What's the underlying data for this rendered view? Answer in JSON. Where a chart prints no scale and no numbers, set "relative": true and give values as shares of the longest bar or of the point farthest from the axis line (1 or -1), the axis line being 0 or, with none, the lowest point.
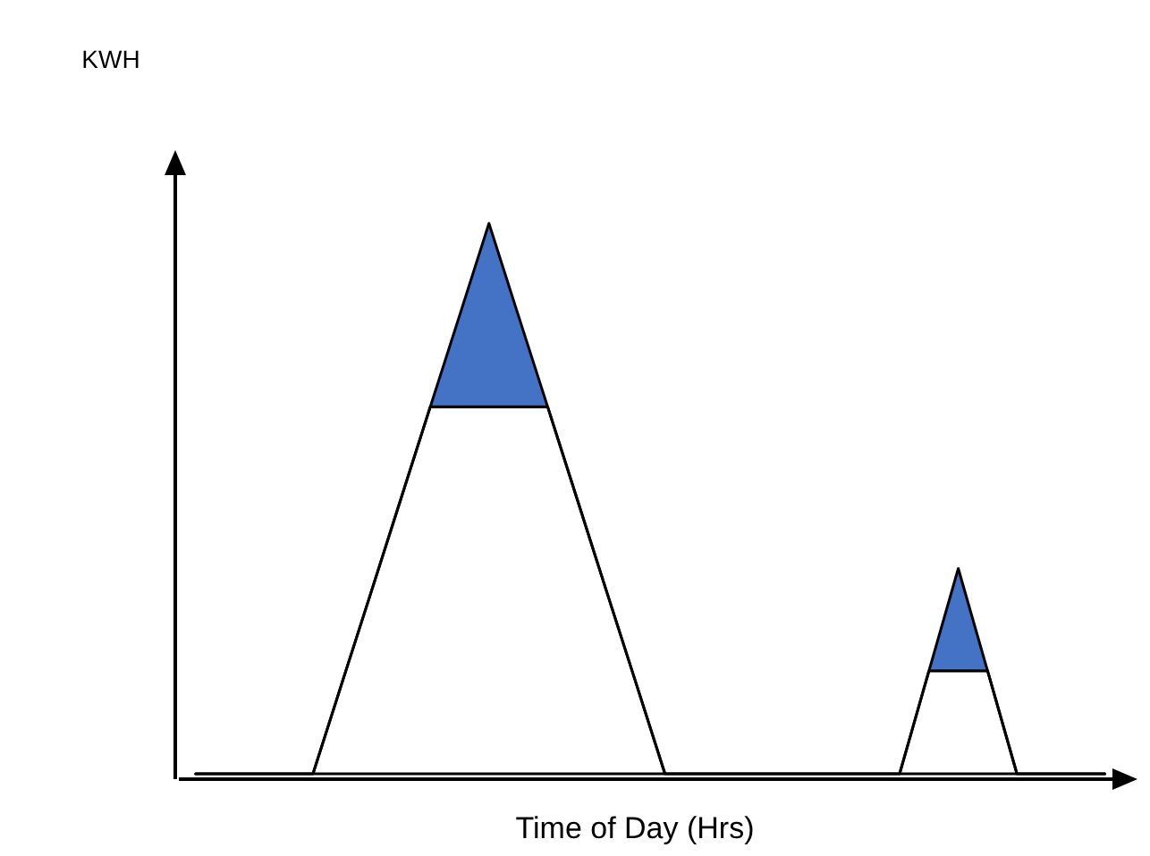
{
  "chart_data": {
    "type": "area",
    "relative": true,
    "stacked": true,
    "xlabel": "Time of Day (Hrs)",
    "annotations": [
      "KWH"
    ],
    "categories": [
      null,
      null,
      null,
      null,
      null,
      null,
      null,
      null,
      null,
      null,
      null,
      null,
      null,
      null,
      null,
      null,
      null,
      null,
      null,
      null,
      null,
      null,
      null,
      null,
      null,
      null,
      null,
      null,
      null,
      null,
      null,
      null
    ],
    "series": [
      {
        "color": "#ffffff",
        "values": [
          0,
          0,
          0,
          0,
          0,
          0.167,
          0.333,
          0.5,
          0.667,
          0.667,
          0.667,
          0.667,
          0.667,
          0.5,
          0.333,
          0.167,
          0,
          0,
          0,
          0,
          0,
          0,
          0,
          0,
          0,
          0.187,
          0.187,
          0.187,
          0,
          0,
          0,
          0
        ]
      },
      {
        "color": "#4472c4",
        "values": [
          0,
          0,
          0,
          0,
          0,
          0,
          0,
          0,
          0,
          0.166,
          0.333,
          0.166,
          0,
          0,
          0,
          0,
          0,
          0,
          0,
          0,
          0,
          0,
          0,
          0,
          0,
          0,
          0.186,
          0,
          0,
          0,
          0,
          0
        ]
      }
    ]
  }
}
